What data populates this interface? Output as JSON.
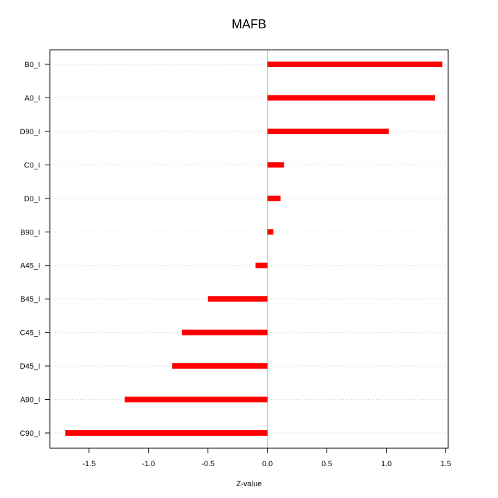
{
  "chart_data": {
    "type": "bar",
    "orientation": "horizontal",
    "title": "MAFB",
    "xlabel": "Z-value",
    "ylabel": "",
    "xlim": [
      -1.83,
      1.52
    ],
    "xticks": [
      -1.5,
      -1.0,
      -0.5,
      0.0,
      0.5,
      1.0,
      1.5
    ],
    "xtick_labels": [
      "-1.5",
      "-1.0",
      "-0.5",
      "0.0",
      "0.5",
      "1.0",
      "1.5"
    ],
    "categories": [
      "B0_I",
      "A0_I",
      "D90_I",
      "C0_I",
      "D0_I",
      "B90_I",
      "A45_I",
      "B45_I",
      "C45_I",
      "D45_I",
      "A90_I",
      "C90_I"
    ],
    "values": [
      1.47,
      1.41,
      1.02,
      0.14,
      0.11,
      0.05,
      -0.1,
      -0.5,
      -0.72,
      -0.8,
      -1.2,
      -1.7
    ],
    "grid": true,
    "reference_line": 0.0,
    "colors": {
      "bar": "#ff0000",
      "reference_line": "#90ee90",
      "grid": "#c8c8c8",
      "axis": "#000000"
    }
  }
}
